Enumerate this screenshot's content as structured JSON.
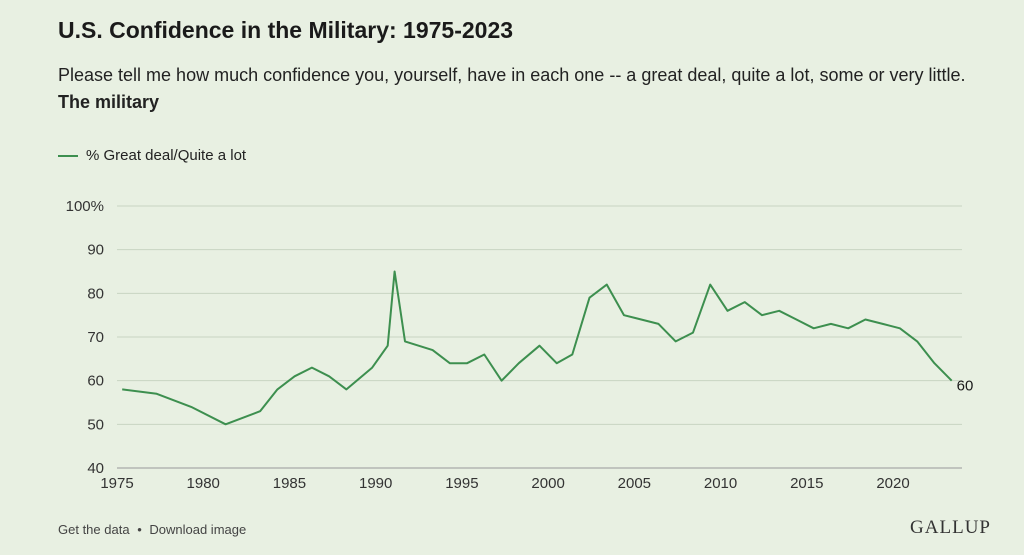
{
  "header": {
    "title": "U.S. Confidence in the Military: 1975-2023",
    "subtitle_prefix": "Please tell me how much confidence you, yourself, have in each one -- a great deal, quite a lot, some or very little.",
    "subtitle_bold": "The military"
  },
  "legend": {
    "label": "% Great deal/Quite a lot",
    "color": "#3d8f4f"
  },
  "footer": {
    "data_link": "Get the data",
    "separator": "•",
    "download_link": "Download image"
  },
  "brand": {
    "logo_text": "GALLUP"
  },
  "chart_data": {
    "type": "line",
    "xlim": [
      1975,
      2024
    ],
    "ylim": [
      40,
      100
    ],
    "x_ticks": [
      1975,
      1980,
      1985,
      1990,
      1995,
      2000,
      2005,
      2010,
      2015,
      2020
    ],
    "y_ticks": [
      40,
      50,
      60,
      70,
      80,
      90,
      100
    ],
    "y_tick_labels": [
      "40",
      "50",
      "60",
      "70",
      "80",
      "90",
      "100%"
    ],
    "grid": "horizontal",
    "end_label": "60",
    "series": [
      {
        "name": "% Great deal/Quite a lot",
        "color": "#3d8f4f",
        "x": [
          1975.3,
          1977.3,
          1979.3,
          1981.3,
          1983.3,
          1984.3,
          1985.3,
          1986.3,
          1987.3,
          1988.3,
          1989.8,
          1990.7,
          1991.1,
          1991.7,
          1993.3,
          1994.3,
          1995.3,
          1996.3,
          1997.3,
          1998.3,
          1999.5,
          2000.5,
          2001.4,
          2002.4,
          2003.4,
          2004.4,
          2005.4,
          2006.4,
          2007.4,
          2008.4,
          2009.4,
          2010.4,
          2011.4,
          2012.4,
          2013.4,
          2014.4,
          2015.4,
          2016.4,
          2017.4,
          2018.4,
          2019.4,
          2020.4,
          2021.4,
          2022.4,
          2023.4
        ],
        "y": [
          58,
          57,
          54,
          50,
          53,
          58,
          61,
          63,
          61,
          58,
          63,
          68,
          85,
          69,
          67,
          64,
          64,
          66,
          60,
          64,
          68,
          64,
          66,
          79,
          82,
          75,
          74,
          73,
          69,
          71,
          82,
          76,
          78,
          75,
          76,
          74,
          72,
          73,
          72,
          74,
          73,
          72,
          69,
          64,
          60
        ]
      }
    ]
  }
}
